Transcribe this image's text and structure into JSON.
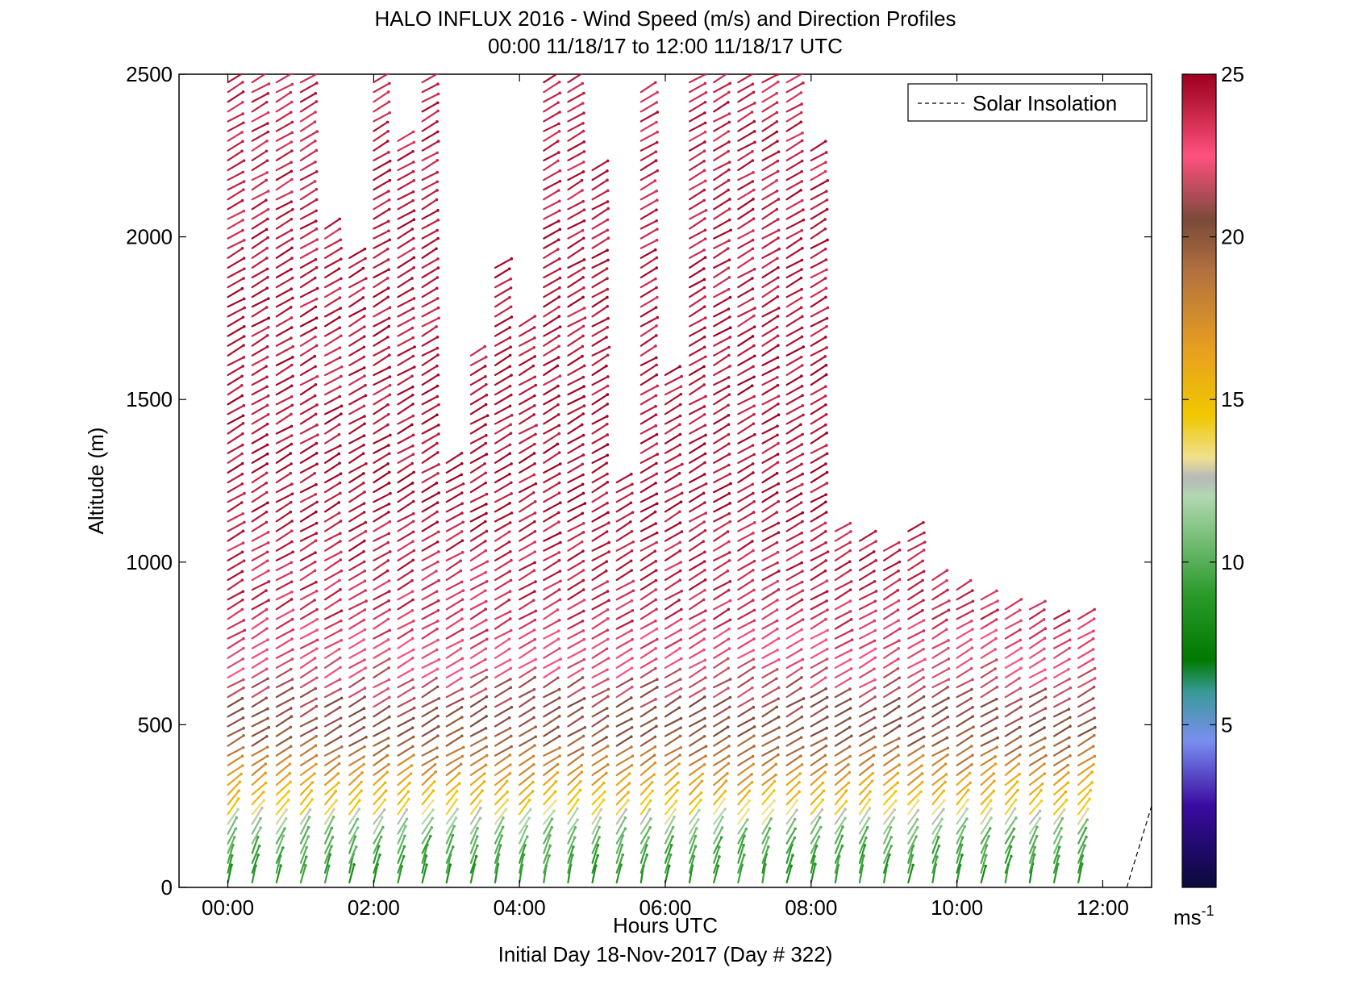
{
  "chart_data": {
    "type": "wind_barb_profile",
    "title": "HALO INFLUX 2016 - Wind Speed (m/s) and Direction Profiles",
    "subtitle": "00:00 11/18/17 to 12:00 11/18/17  UTC",
    "xlabel": "Hours UTC",
    "xlabel2": "Initial Day 18-Nov-2017 (Day # 322)",
    "ylabel": "Altitude (m)",
    "xlim_hours": [
      -0.67,
      12.67
    ],
    "ylim": [
      0,
      2500
    ],
    "x_ticks": [
      {
        "value": 0,
        "label": "00:00"
      },
      {
        "value": 2,
        "label": "02:00"
      },
      {
        "value": 4,
        "label": "04:00"
      },
      {
        "value": 6,
        "label": "06:00"
      },
      {
        "value": 8,
        "label": "08:00"
      },
      {
        "value": 10,
        "label": "10:00"
      },
      {
        "value": 12,
        "label": "12:00"
      }
    ],
    "y_ticks": [
      {
        "value": 0,
        "label": "0"
      },
      {
        "value": 500,
        "label": "500"
      },
      {
        "value": 1000,
        "label": "1000"
      },
      {
        "value": 1500,
        "label": "1500"
      },
      {
        "value": 2000,
        "label": "2000"
      },
      {
        "value": 2500,
        "label": "2500"
      }
    ],
    "legend": {
      "label": "Solar Insolation",
      "style": "dashed",
      "placement": "top-right"
    },
    "colorbar": {
      "range": [
        0,
        25
      ],
      "ticks": [
        {
          "value": 5,
          "label": "5"
        },
        {
          "value": 10,
          "label": "10"
        },
        {
          "value": 15,
          "label": "15"
        },
        {
          "value": 20,
          "label": "20"
        },
        {
          "value": 25,
          "label": "25"
        }
      ],
      "unit": "ms",
      "unit_exp": "-1",
      "stops": [
        {
          "v": 0,
          "color": "#0a0a3a"
        },
        {
          "v": 2.5,
          "color": "#3a0aa0"
        },
        {
          "v": 4.5,
          "color": "#7a8ef0"
        },
        {
          "v": 6,
          "color": "#3a9a9a"
        },
        {
          "v": 7,
          "color": "#007a00"
        },
        {
          "v": 9,
          "color": "#2a9a2a"
        },
        {
          "v": 12,
          "color": "#b0d8b0"
        },
        {
          "v": 12.6,
          "color": "#b8b8b8"
        },
        {
          "v": 13.2,
          "color": "#f0e090"
        },
        {
          "v": 14.5,
          "color": "#f0c800"
        },
        {
          "v": 16.5,
          "color": "#e8a020"
        },
        {
          "v": 19,
          "color": "#b07040"
        },
        {
          "v": 20.5,
          "color": "#7a4a3a"
        },
        {
          "v": 22.5,
          "color": "#ff5080"
        },
        {
          "v": 24,
          "color": "#c02040"
        },
        {
          "v": 25,
          "color": "#a00020"
        }
      ]
    },
    "solar_insolation_line": [
      [
        12.33,
        0
      ],
      [
        12.67,
        250
      ]
    ],
    "profiles": {
      "time_start_h": 0.0,
      "time_step_h": 0.3333,
      "count": 36,
      "altitude_step_m": 30,
      "wind_from_deg_aloft": 240,
      "wind_from_deg_surface": 190,
      "top_altitude_m": [
        2490,
        2500,
        2500,
        2500,
        2040,
        1950,
        2500,
        2300,
        2500,
        1320,
        1650,
        1920,
        1750,
        2500,
        2500,
        2220,
        1250,
        2450,
        1600,
        2500,
        2500,
        2500,
        2500,
        2500,
        2280,
        1100,
        1070,
        1040,
        1110,
        960,
        940,
        900,
        880,
        860,
        840,
        830
      ],
      "speed_nodes": [
        {
          "alt": 0,
          "speed": 8.5
        },
        {
          "alt": 150,
          "speed": 10.5
        },
        {
          "alt": 250,
          "speed": 15
        },
        {
          "alt": 450,
          "speed": 20
        },
        {
          "alt": 800,
          "speed": 23.5
        },
        {
          "alt": 1200,
          "speed": 24.5
        },
        {
          "alt": 2500,
          "speed": 24
        }
      ]
    }
  }
}
